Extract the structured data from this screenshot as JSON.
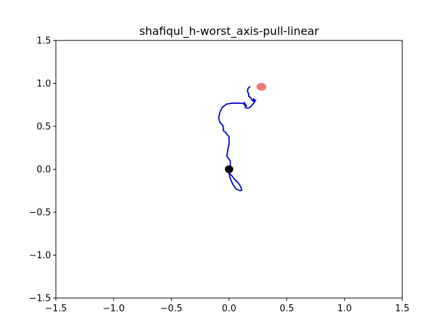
{
  "chart_data": {
    "type": "line",
    "title": "shafiqul_h-worst_axis-pull-linear",
    "xlabel": "",
    "ylabel": "",
    "xlim": [
      -1.5,
      1.5
    ],
    "ylim": [
      -1.5,
      1.5
    ],
    "grid": false,
    "x_ticks": [
      -1.5,
      -1.0,
      -0.5,
      0.0,
      0.5,
      1.0,
      1.5
    ],
    "y_ticks": [
      -1.5,
      -1.0,
      -0.5,
      0.0,
      0.5,
      1.0,
      1.5
    ],
    "x_tick_labels": [
      "−1.5",
      "−1.0",
      "−0.5",
      "0.0",
      "0.5",
      "1.0",
      "1.5"
    ],
    "y_tick_labels": [
      "−1.5",
      "−1.0",
      "−0.5",
      "0.0",
      "0.5",
      "1.0",
      "1.5"
    ],
    "series": [
      {
        "kind": "line",
        "color": "#0000cc",
        "x": [
          0.0,
          -0.01,
          0.02,
          0.05,
          0.08,
          0.1,
          0.11,
          0.1,
          0.06,
          0.03,
          0.01,
          0.0,
          -0.01,
          0.0,
          0.01,
          0.01,
          -0.02,
          -0.01,
          0.0,
          0.0,
          -0.02,
          -0.03,
          -0.05,
          -0.05,
          -0.08,
          -0.09,
          -0.08,
          -0.06,
          -0.02,
          0.03,
          0.07,
          0.09,
          0.11,
          0.13,
          0.14,
          0.13,
          0.15,
          0.14,
          0.16,
          0.18,
          0.2,
          0.22,
          0.21,
          0.23,
          0.22,
          0.2,
          0.19,
          0.17,
          0.17,
          0.16,
          0.16,
          0.17,
          0.18
        ],
        "y": [
          0.0,
          -0.03,
          -0.07,
          -0.12,
          -0.16,
          -0.2,
          -0.24,
          -0.25,
          -0.23,
          -0.17,
          -0.11,
          -0.05,
          -0.01,
          0.01,
          0.04,
          0.1,
          0.15,
          0.23,
          0.3,
          0.38,
          0.41,
          0.43,
          0.45,
          0.5,
          0.55,
          0.6,
          0.66,
          0.72,
          0.76,
          0.77,
          0.77,
          0.77,
          0.77,
          0.76,
          0.74,
          0.78,
          0.74,
          0.72,
          0.71,
          0.72,
          0.75,
          0.78,
          0.82,
          0.8,
          0.79,
          0.8,
          0.83,
          0.85,
          0.88,
          0.9,
          0.93,
          0.95,
          0.96
        ]
      }
    ],
    "markers": [
      {
        "name": "start",
        "x": 0.0,
        "y": 0.0,
        "color": "#000000"
      },
      {
        "name": "goal",
        "x": 0.28,
        "y": 0.96,
        "color": "#f06060"
      }
    ]
  }
}
